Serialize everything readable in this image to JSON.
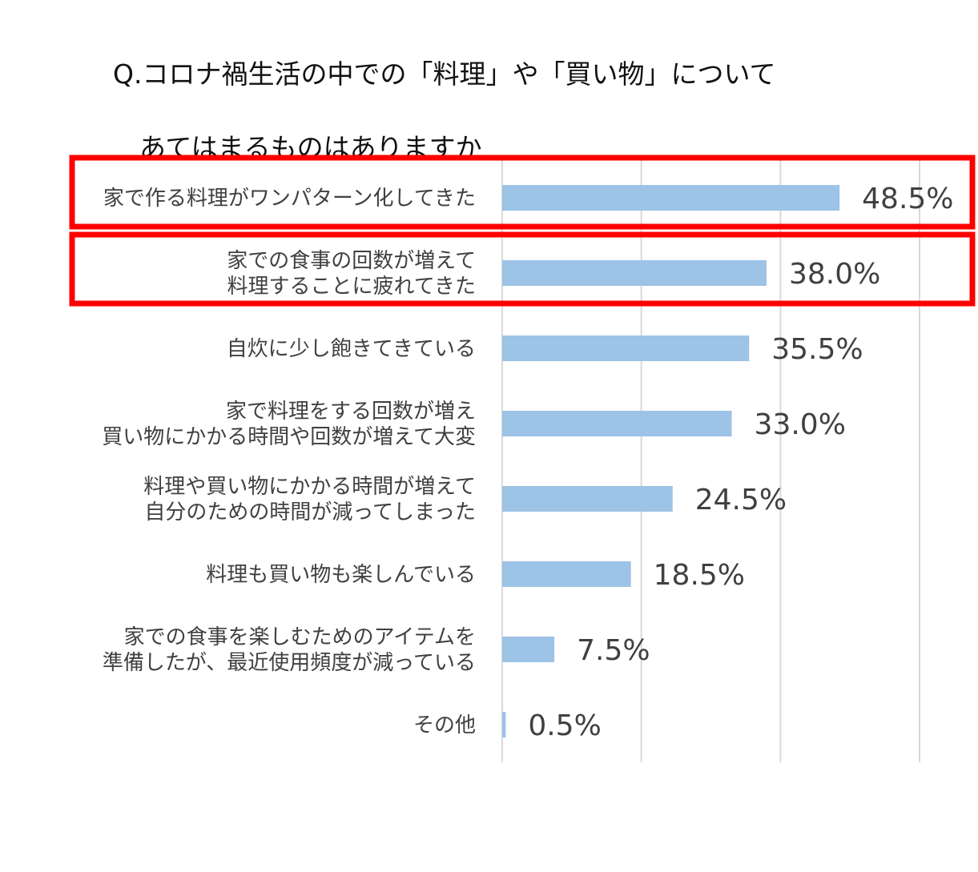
{
  "title": {
    "line1": "Q.コロナ禍生活の中での「料理」や「買い物」について",
    "line2": "あてはまるものはありますか"
  },
  "colors": {
    "bar": "#9dc3e6",
    "highlight": "#ff0000",
    "grid": "#d9d9d9",
    "text": "#404040"
  },
  "chart_data": {
    "type": "bar",
    "orientation": "horizontal",
    "categories": [
      [
        "家で作る料理がワンパターン化してきた"
      ],
      [
        "家での食事の回数が増えて",
        "料理することに疲れてきた"
      ],
      [
        "自炊に少し飽きてきている"
      ],
      [
        "家で料理をする回数が増え",
        "買い物にかかる時間や回数が増えて大変"
      ],
      [
        "料理や買い物にかかる時間が増えて",
        "自分のための時間が減ってしまった"
      ],
      [
        "料理も買い物も楽しんでいる"
      ],
      [
        "家での食事を楽しむためのアイテムを",
        "準備したが、最近使用頻度が減っている"
      ],
      [
        "その他"
      ]
    ],
    "values": [
      48.5,
      38.0,
      35.5,
      33.0,
      24.5,
      18.5,
      7.5,
      0.5
    ],
    "value_labels": [
      "48.5%",
      "38.0%",
      "35.5%",
      "33.0%",
      "24.5%",
      "18.5%",
      "7.5%",
      "0.5%"
    ],
    "xlim": [
      0,
      60
    ],
    "gridlines_at": [
      0,
      20,
      40,
      60
    ],
    "grid": true,
    "highlighted_rows": [
      0,
      1
    ]
  }
}
